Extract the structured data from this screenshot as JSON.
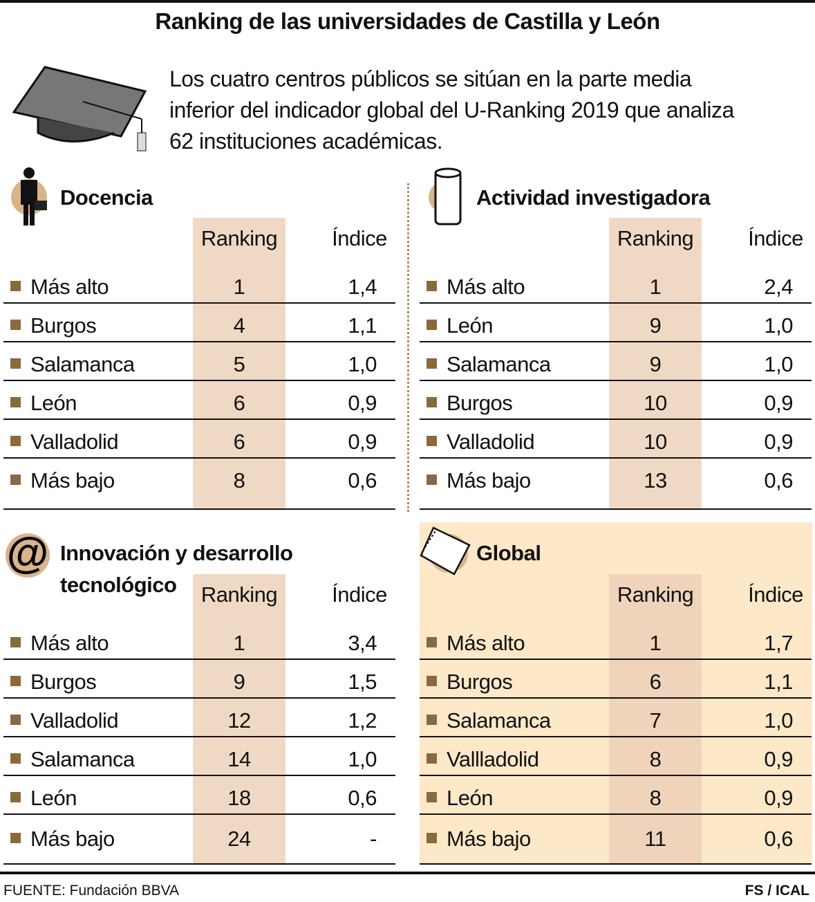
{
  "header": {
    "title": "Ranking de las universidades de Castilla y León",
    "intro": "Los cuatro centros públicos se sitúan en la parte media inferior del indicador global del U-Ranking 2019 que analiza 62 instituciones académicas."
  },
  "sections": [
    {
      "title": "Docencia",
      "columns": [
        "Ranking",
        "Índice"
      ],
      "rows": [
        [
          "Más alto",
          "1",
          "1,4"
        ],
        [
          "Burgos",
          "4",
          "1,1"
        ],
        [
          "Salamanca",
          "5",
          "1,0"
        ],
        [
          "León",
          "6",
          "0,9"
        ],
        [
          "Valladolid",
          "6",
          "0,9"
        ],
        [
          "Más bajo",
          "8",
          "0,6"
        ]
      ]
    },
    {
      "title": "Actividad investigadora",
      "columns": [
        "Ranking",
        "Índice"
      ],
      "rows": [
        [
          "Más alto",
          "1",
          "2,4"
        ],
        [
          "León",
          "9",
          "1,0"
        ],
        [
          "Salamanca",
          "9",
          "1,0"
        ],
        [
          "Burgos",
          "10",
          "0,9"
        ],
        [
          "Valladolid",
          "10",
          "0,9"
        ],
        [
          "Más bajo",
          "13",
          "0,6"
        ]
      ]
    },
    {
      "title": "Innovación y desarrollo tecnológico",
      "columns": [
        "Ranking",
        "Índice"
      ],
      "rows": [
        [
          "Más alto",
          "1",
          "3,4"
        ],
        [
          "Burgos",
          "9",
          "1,5"
        ],
        [
          "Valladolid",
          "12",
          "1,2"
        ],
        [
          "Salamanca",
          "14",
          "1,0"
        ],
        [
          "León",
          "18",
          "0,6"
        ],
        [
          "Más bajo",
          "24",
          "-"
        ]
      ]
    },
    {
      "title": "Global",
      "columns": [
        "Ranking",
        "Índice"
      ],
      "rows": [
        [
          "Más alto",
          "1",
          "1,7"
        ],
        [
          "Burgos",
          "6",
          "1,1"
        ],
        [
          "Salamanca",
          "7",
          "1,0"
        ],
        [
          "Vallladolid",
          "8",
          "0,9"
        ],
        [
          "León",
          "8",
          "0,9"
        ],
        [
          "Más bajo",
          "11",
          "0,6"
        ]
      ]
    }
  ],
  "footer": {
    "source": "FUENTE: Fundación BBVA",
    "credit": "FS / ICAL"
  }
}
